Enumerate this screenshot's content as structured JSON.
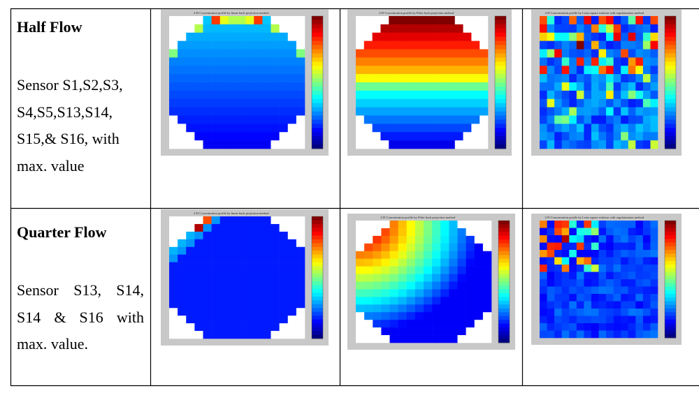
{
  "table": {
    "rows": [
      {
        "heading": "Half Flow",
        "description_lines": [
          "Sensor S1,S2,S3,",
          "S4,S5,S13,S14,",
          "S15,& S16, with",
          "max. value"
        ],
        "plots": [
          {
            "title": "2-D Concentration profile by linear back projection method",
            "pattern": "half_lbp"
          },
          {
            "title": "2-D Concentration profile by Filter back projection method",
            "pattern": "half_fbp"
          },
          {
            "title": "2-D Concentration profile by Least square solution with regularization method",
            "pattern": "half_lsq"
          }
        ]
      },
      {
        "heading": "Quarter Flow",
        "description_lines": [
          "Sensor S13, S14,",
          "S14 & S16 with",
          "max. value."
        ],
        "plots": [
          {
            "title": "2-D Concentration profile by linear back projection method",
            "pattern": "quarter_lbp"
          },
          {
            "title": "2-D Concentration profile by Filter back projection method",
            "pattern": "quarter_fbp"
          },
          {
            "title": "2-D Concentration profile by Least square solution with regularization method",
            "pattern": "quarter_lsq"
          }
        ]
      }
    ]
  },
  "colormap": "jet",
  "colors": {
    "border": "#000000",
    "plot_background": "#c8c8c8",
    "empty_cell": "#ffffff"
  }
}
